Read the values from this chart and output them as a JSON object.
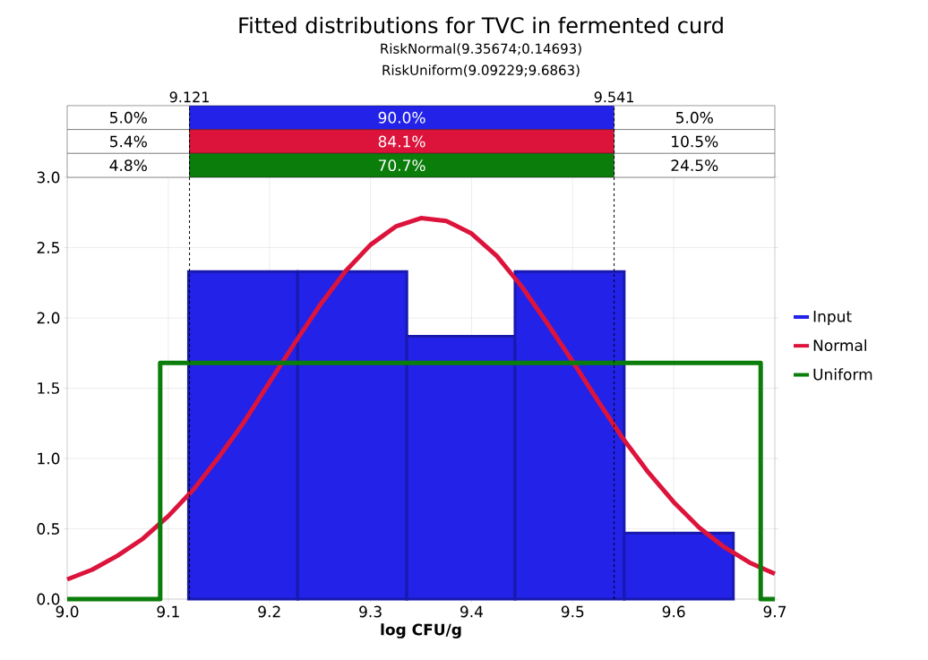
{
  "chart_data": {
    "type": "histogram",
    "title": "Fitted distributions for TVC in fermented curd",
    "subtitle": "RiskNormal(9.35674;0.14693)",
    "xlabel": "log CFU/g",
    "annotations": [
      "RiskUniform(9.09229;9.6863)",
      "5.0%",
      "90.0%",
      "5.0%",
      "5.4%",
      "84.1%",
      "10.5%",
      "4.8%",
      "70.7%",
      "24.5%"
    ],
    "series": [
      {
        "name": "Input",
        "type": "histogram",
        "color": "#2222e8",
        "bins": [
          9.12,
          9.228,
          9.336,
          9.443,
          9.551,
          9.659
        ],
        "values": [
          2.33,
          2.33,
          1.87,
          2.33,
          0.47
        ]
      },
      {
        "name": "Normal",
        "type": "line",
        "color": "#dc143c",
        "x": [
          9.0,
          9.025,
          9.05,
          9.075,
          9.1,
          9.125,
          9.15,
          9.175,
          9.2,
          9.225,
          9.25,
          9.275,
          9.3,
          9.325,
          9.35,
          9.375,
          9.4,
          9.425,
          9.45,
          9.475,
          9.5,
          9.525,
          9.55,
          9.575,
          9.6,
          9.625,
          9.65,
          9.675,
          9.7
        ],
        "values": [
          0.14,
          0.21,
          0.31,
          0.43,
          0.59,
          0.78,
          1.01,
          1.26,
          1.54,
          1.82,
          2.09,
          2.33,
          2.52,
          2.65,
          2.71,
          2.69,
          2.6,
          2.44,
          2.22,
          1.96,
          1.69,
          1.41,
          1.14,
          0.9,
          0.69,
          0.51,
          0.37,
          0.26,
          0.18
        ]
      },
      {
        "name": "Uniform",
        "type": "line",
        "color": "#0a7d0a",
        "x": [
          9.0,
          9.092,
          9.092,
          9.686,
          9.686,
          9.7
        ],
        "values": [
          0,
          0,
          1.68,
          1.68,
          0,
          0
        ]
      }
    ],
    "xlim": [
      9.0,
      9.7
    ],
    "xticks": [
      {
        "value": 9.0,
        "label": "9.0"
      },
      9.1,
      9.2,
      9.3,
      9.4,
      9.5,
      9.6,
      9.7
    ],
    "ylim": [
      0,
      3.0
    ],
    "yticks": [
      {
        "value": 0,
        "label": "0.0"
      },
      0.5,
      {
        "value": 1.0,
        "label": "1.0"
      },
      1.5,
      {
        "value": 2.0,
        "label": "2.0"
      },
      2.5,
      {
        "value": 3.0,
        "label": "3.0"
      }
    ],
    "ref_lines": [
      {
        "axis": "x",
        "value": 9.121,
        "label": "9.121",
        "color": "#000000",
        "line_style": "dashed"
      },
      {
        "axis": "x",
        "value": 9.541,
        "label": "9.541",
        "color": "#000000",
        "line_style": "dashed"
      }
    ],
    "grid": true,
    "legend": "right"
  }
}
